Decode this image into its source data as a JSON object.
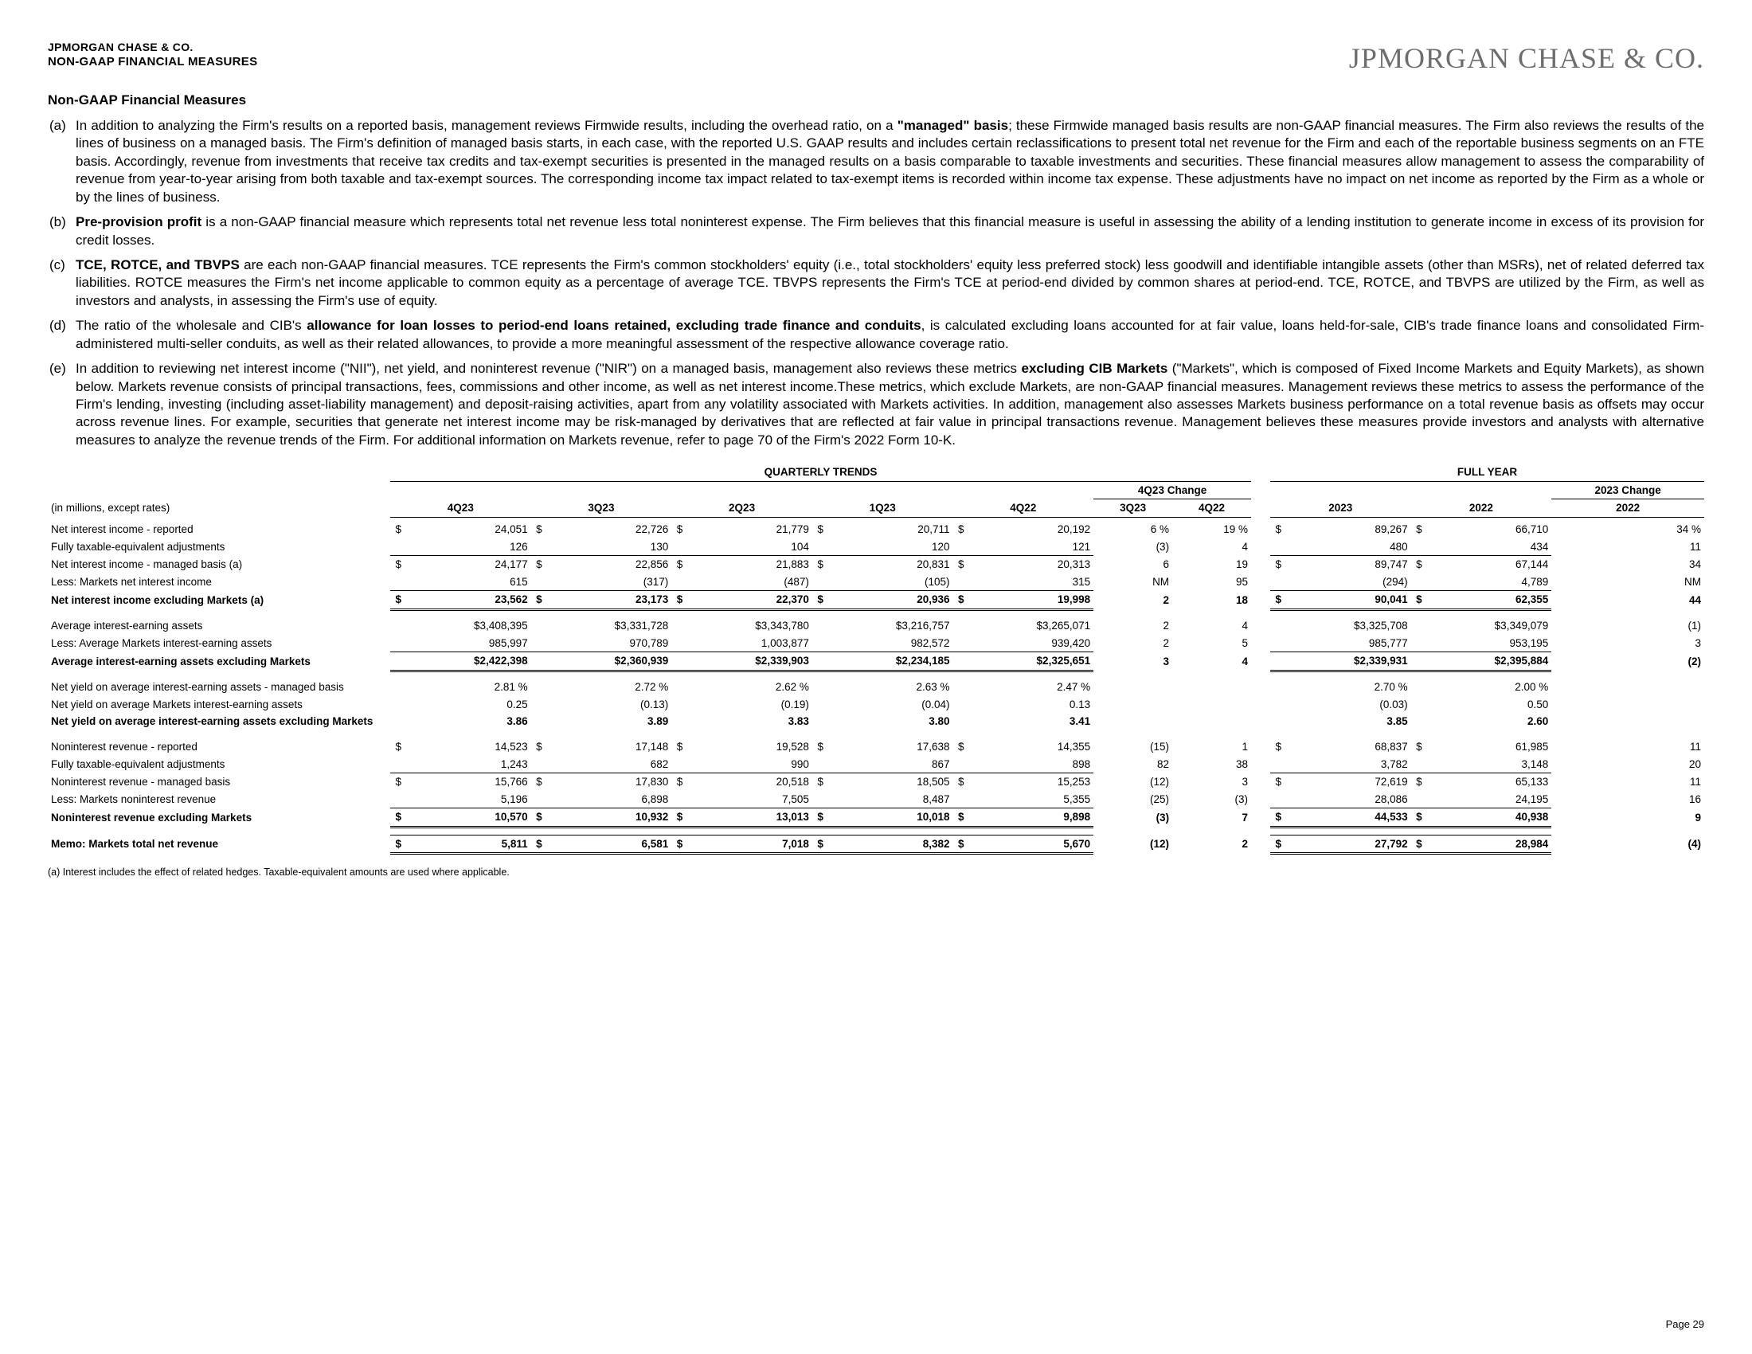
{
  "header": {
    "company_small": "JPMORGAN CHASE & CO.",
    "subtitle": "NON-GAAP FINANCIAL MEASURES",
    "logo": "JPMORGAN CHASE & CO."
  },
  "section_title": "Non-GAAP Financial Measures",
  "notes": [
    {
      "letter": "(a)",
      "html": "In addition to analyzing the Firm's results on a reported basis, management reviews Firmwide results, including the overhead ratio, on a <b>\"managed\" basis</b>; these Firmwide managed basis results are non-GAAP financial measures. The Firm also reviews the results of the lines of business on a managed basis. The Firm's definition of managed basis starts, in each case, with the reported U.S. GAAP results and includes certain reclassifications to present total net revenue for the Firm and each of the reportable business segments on an FTE basis. Accordingly, revenue from investments that receive tax credits and tax-exempt securities is presented in the managed results on a basis comparable to taxable investments and securities. These financial measures allow management to assess the comparability of revenue from year-to-year arising from both taxable and tax-exempt sources. The corresponding income tax impact related to tax-exempt items is recorded within income tax expense. These adjustments have no impact on net income as reported by the Firm as a whole or by the lines of business."
    },
    {
      "letter": "(b)",
      "html": "<b>Pre-provision profit</b> is a non-GAAP financial measure which represents total net revenue less total noninterest expense. The Firm believes that this financial measure is useful in assessing the ability of a lending institution to generate income in excess of its provision for credit losses."
    },
    {
      "letter": "(c)",
      "html": "<b>TCE, ROTCE, and TBVPS</b> are each non-GAAP financial measures. TCE represents the Firm's common stockholders' equity (i.e., total stockholders' equity less preferred stock) less goodwill and identifiable intangible assets (other than MSRs), net of related deferred tax liabilities. ROTCE measures the Firm's net income applicable to common equity as a percentage of average TCE. TBVPS represents the Firm's TCE at period-end divided by common shares at period-end. TCE, ROTCE, and TBVPS are utilized by the Firm, as well as investors and analysts, in assessing the Firm's use of equity."
    },
    {
      "letter": "(d)",
      "html": "The ratio of the wholesale and CIB's <b>allowance for loan losses to period-end loans retained, excluding trade finance and conduits</b>, is calculated excluding loans accounted for at fair value, loans held-for-sale, CIB's trade finance loans and consolidated Firm-administered multi-seller conduits, as well as their related allowances, to provide a more meaningful assessment of the respective allowance coverage ratio."
    },
    {
      "letter": "(e)",
      "html": "In addition to reviewing net interest income (\"NII\"), net yield, and noninterest revenue (\"NIR\") on a managed basis, management also reviews these metrics <b>excluding CIB Markets</b> (\"Markets\", which is composed of Fixed Income Markets and Equity Markets), as shown below. Markets revenue consists of principal transactions, fees, commissions and other income, as well as net interest income.These metrics, which exclude Markets, are non-GAAP financial measures. Management reviews these metrics to assess the performance of the Firm's lending, investing (including asset-liability management) and deposit-raising activities, apart from any volatility associated with Markets activities. In addition, management also assesses Markets business performance on a total revenue basis as offsets may occur across revenue lines. For example, securities that generate net interest income may be risk-managed by derivatives that are reflected at fair value in principal transactions revenue. Management believes these measures provide investors and analysts with alternative measures to analyze the revenue trends of the Firm. For additional information on Markets revenue, refer to page 70 of the Firm's 2022 Form 10-K."
    }
  ],
  "table": {
    "header_quarterly": "QUARTERLY TRENDS",
    "header_fullyear": "FULL YEAR",
    "header_change_q": "4Q23 Change",
    "header_change_y": "2023 Change",
    "unit_label": "(in millions, except rates)",
    "cols_q": [
      "4Q23",
      "3Q23",
      "2Q23",
      "1Q23",
      "4Q22"
    ],
    "cols_chg_q": [
      "3Q23",
      "4Q22"
    ],
    "cols_y": [
      "2023",
      "2022"
    ],
    "cols_chg_y": [
      "2022"
    ],
    "rows": [
      {
        "label": "Net interest income - reported",
        "d": "$",
        "q": [
          "24,051",
          "22,726",
          "21,779",
          "20,711",
          "20,192"
        ],
        "cq": [
          "6 %",
          "19 %"
        ],
        "y": [
          "89,267",
          "66,710"
        ],
        "cy": [
          "34 %"
        ],
        "bold": false,
        "border": ""
      },
      {
        "label": "Fully taxable-equivalent adjustments",
        "d": "",
        "q": [
          "126",
          "130",
          "104",
          "120",
          "121"
        ],
        "cq": [
          "(3)",
          "4"
        ],
        "y": [
          "480",
          "434"
        ],
        "cy": [
          "11"
        ],
        "bold": false,
        "border": ""
      },
      {
        "label": "Net interest income - managed basis (a)",
        "d": "$",
        "q": [
          "24,177",
          "22,856",
          "21,883",
          "20,831",
          "20,313"
        ],
        "cq": [
          "6",
          "19"
        ],
        "y": [
          "89,747",
          "67,144"
        ],
        "cy": [
          "34"
        ],
        "bold": false,
        "border": "top"
      },
      {
        "label": "Less: Markets net interest income",
        "d": "",
        "q": [
          "615",
          "(317)",
          "(487)",
          "(105)",
          "315"
        ],
        "cq": [
          "NM",
          "95"
        ],
        "y": [
          "(294)",
          "4,789"
        ],
        "cy": [
          "NM"
        ],
        "bold": false,
        "border": ""
      },
      {
        "label": "Net interest income excluding Markets (a)",
        "d": "$",
        "q": [
          "23,562",
          "23,173",
          "22,370",
          "20,936",
          "19,998"
        ],
        "cq": [
          "2",
          "18"
        ],
        "y": [
          "90,041",
          "62,355"
        ],
        "cy": [
          "44"
        ],
        "bold": true,
        "border": "dbl"
      },
      {
        "spacer": true
      },
      {
        "label": "Average interest-earning assets",
        "d": "",
        "q": [
          "$3,408,395",
          "$3,331,728",
          "$3,343,780",
          "$3,216,757",
          "$3,265,071"
        ],
        "cq": [
          "2",
          "4"
        ],
        "y": [
          "$3,325,708",
          "$3,349,079"
        ],
        "cy": [
          "(1)"
        ],
        "bold": false,
        "border": ""
      },
      {
        "label": "Less: Average Markets interest-earning assets",
        "d": "",
        "q": [
          "985,997",
          "970,789",
          "1,003,877",
          "982,572",
          "939,420"
        ],
        "cq": [
          "2",
          "5"
        ],
        "y": [
          "985,777",
          "953,195"
        ],
        "cy": [
          "3"
        ],
        "bold": false,
        "border": ""
      },
      {
        "label": "Average interest-earning assets excluding Markets",
        "d": "",
        "q": [
          "$2,422,398",
          "$2,360,939",
          "$2,339,903",
          "$2,234,185",
          "$2,325,651"
        ],
        "cq": [
          "3",
          "4"
        ],
        "y": [
          "$2,339,931",
          "$2,395,884"
        ],
        "cy": [
          "(2)"
        ],
        "bold": true,
        "border": "dbl"
      },
      {
        "spacer": true
      },
      {
        "label": "Net yield on average interest-earning assets - managed basis",
        "d": "",
        "q": [
          "2.81 %",
          "2.72 %",
          "2.62 %",
          "2.63 %",
          "2.47 %"
        ],
        "cq": [
          "",
          ""
        ],
        "y": [
          "2.70 %",
          "2.00 %"
        ],
        "cy": [
          ""
        ],
        "bold": false,
        "border": ""
      },
      {
        "label": "Net yield on average Markets interest-earning assets",
        "d": "",
        "q": [
          "0.25",
          "(0.13)",
          "(0.19)",
          "(0.04)",
          "0.13"
        ],
        "cq": [
          "",
          ""
        ],
        "y": [
          "(0.03)",
          "0.50"
        ],
        "cy": [
          ""
        ],
        "bold": false,
        "border": ""
      },
      {
        "label": "Net yield on average interest-earning assets excluding Markets",
        "d": "",
        "q": [
          "3.86",
          "3.89",
          "3.83",
          "3.80",
          "3.41"
        ],
        "cq": [
          "",
          ""
        ],
        "y": [
          "3.85",
          "2.60"
        ],
        "cy": [
          ""
        ],
        "bold": true,
        "border": ""
      },
      {
        "spacer": true
      },
      {
        "label": "Noninterest revenue - reported",
        "d": "$",
        "q": [
          "14,523",
          "17,148",
          "19,528",
          "17,638",
          "14,355"
        ],
        "cq": [
          "(15)",
          "1"
        ],
        "y": [
          "68,837",
          "61,985"
        ],
        "cy": [
          "11"
        ],
        "bold": false,
        "border": ""
      },
      {
        "label": "Fully taxable-equivalent adjustments",
        "d": "",
        "q": [
          "1,243",
          "682",
          "990",
          "867",
          "898"
        ],
        "cq": [
          "82",
          "38"
        ],
        "y": [
          "3,782",
          "3,148"
        ],
        "cy": [
          "20"
        ],
        "bold": false,
        "border": ""
      },
      {
        "label": "Noninterest revenue - managed basis",
        "d": "$",
        "q": [
          "15,766",
          "17,830",
          "20,518",
          "18,505",
          "15,253"
        ],
        "cq": [
          "(12)",
          "3"
        ],
        "y": [
          "72,619",
          "65,133"
        ],
        "cy": [
          "11"
        ],
        "bold": false,
        "border": "top"
      },
      {
        "label": "Less: Markets noninterest revenue",
        "d": "",
        "q": [
          "5,196",
          "6,898",
          "7,505",
          "8,487",
          "5,355"
        ],
        "cq": [
          "(25)",
          "(3)"
        ],
        "y": [
          "28,086",
          "24,195"
        ],
        "cy": [
          "16"
        ],
        "bold": false,
        "border": ""
      },
      {
        "label": "Noninterest revenue excluding Markets",
        "d": "$",
        "q": [
          "10,570",
          "10,932",
          "13,013",
          "10,018",
          "9,898"
        ],
        "cq": [
          "(3)",
          "7"
        ],
        "y": [
          "44,533",
          "40,938"
        ],
        "cy": [
          "9"
        ],
        "bold": true,
        "border": "dbl"
      },
      {
        "spacer": true
      },
      {
        "label": "Memo: Markets total net revenue",
        "d": "$",
        "q": [
          "5,811",
          "6,581",
          "7,018",
          "8,382",
          "5,670"
        ],
        "cq": [
          "(12)",
          "2"
        ],
        "y": [
          "27,792",
          "28,984"
        ],
        "cy": [
          "(4)"
        ],
        "bold": true,
        "border": "dbl"
      }
    ]
  },
  "footnote": "(a) Interest includes the effect of related hedges. Taxable-equivalent amounts are used where applicable.",
  "page": "Page 29"
}
